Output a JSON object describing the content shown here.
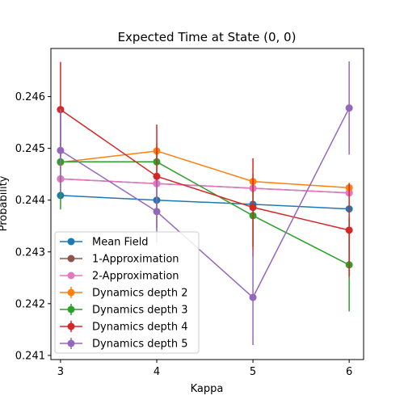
{
  "chart_data": {
    "type": "line",
    "title": "Expected Time at State (0, 0)",
    "xlabel": "Kappa",
    "ylabel": "Probability",
    "x": [
      3,
      4,
      5,
      6
    ],
    "xticks": [
      "3",
      "4",
      "5",
      "6"
    ],
    "xlim": [
      2.9,
      6.15
    ],
    "ylim": [
      0.24092,
      0.24693
    ],
    "yticks": [
      "0.241",
      "0.242",
      "0.243",
      "0.244",
      "0.245",
      "0.246"
    ],
    "ytick_values": [
      0.241,
      0.242,
      0.243,
      0.244,
      0.245,
      0.246
    ],
    "grid": false,
    "legend_position": "lower-left",
    "series": [
      {
        "name": "Mean Field",
        "color": "#1f77b4",
        "values": [
          0.24409,
          0.244,
          0.24392,
          0.24383
        ],
        "errors": null
      },
      {
        "name": "1-Approximation",
        "color": "#8c564b",
        "values": [
          0.24441,
          0.24432,
          0.24423,
          0.24414
        ],
        "errors": null
      },
      {
        "name": "2-Approximation",
        "color": "#e377c2",
        "values": [
          0.24441,
          0.24432,
          0.24423,
          0.24414
        ],
        "errors": null
      },
      {
        "name": "Dynamics depth 2",
        "color": "#ff7f0e",
        "values": [
          0.24473,
          0.24495,
          0.24436,
          0.24424
        ],
        "errors": [
          5e-05,
          0.00014,
          0.00015,
          0.0001
        ]
      },
      {
        "name": "Dynamics depth 3",
        "color": "#2ca02c",
        "values": [
          0.24474,
          0.24474,
          0.2437,
          0.24275
        ],
        "errors": [
          0.00092,
          0.0002,
          0.0006,
          0.0009
        ]
      },
      {
        "name": "Dynamics depth 4",
        "color": "#d62728",
        "values": [
          0.24575,
          0.24446,
          0.24386,
          0.24342
        ],
        "errors": [
          0.00092,
          0.001,
          0.00095,
          0.0009
        ]
      },
      {
        "name": "Dynamics depth 5",
        "color": "#9467bd",
        "values": [
          0.24496,
          0.24378,
          0.24212,
          0.24578
        ],
        "errors": [
          0.0008,
          0.0006,
          0.00092,
          0.0009
        ]
      }
    ]
  }
}
